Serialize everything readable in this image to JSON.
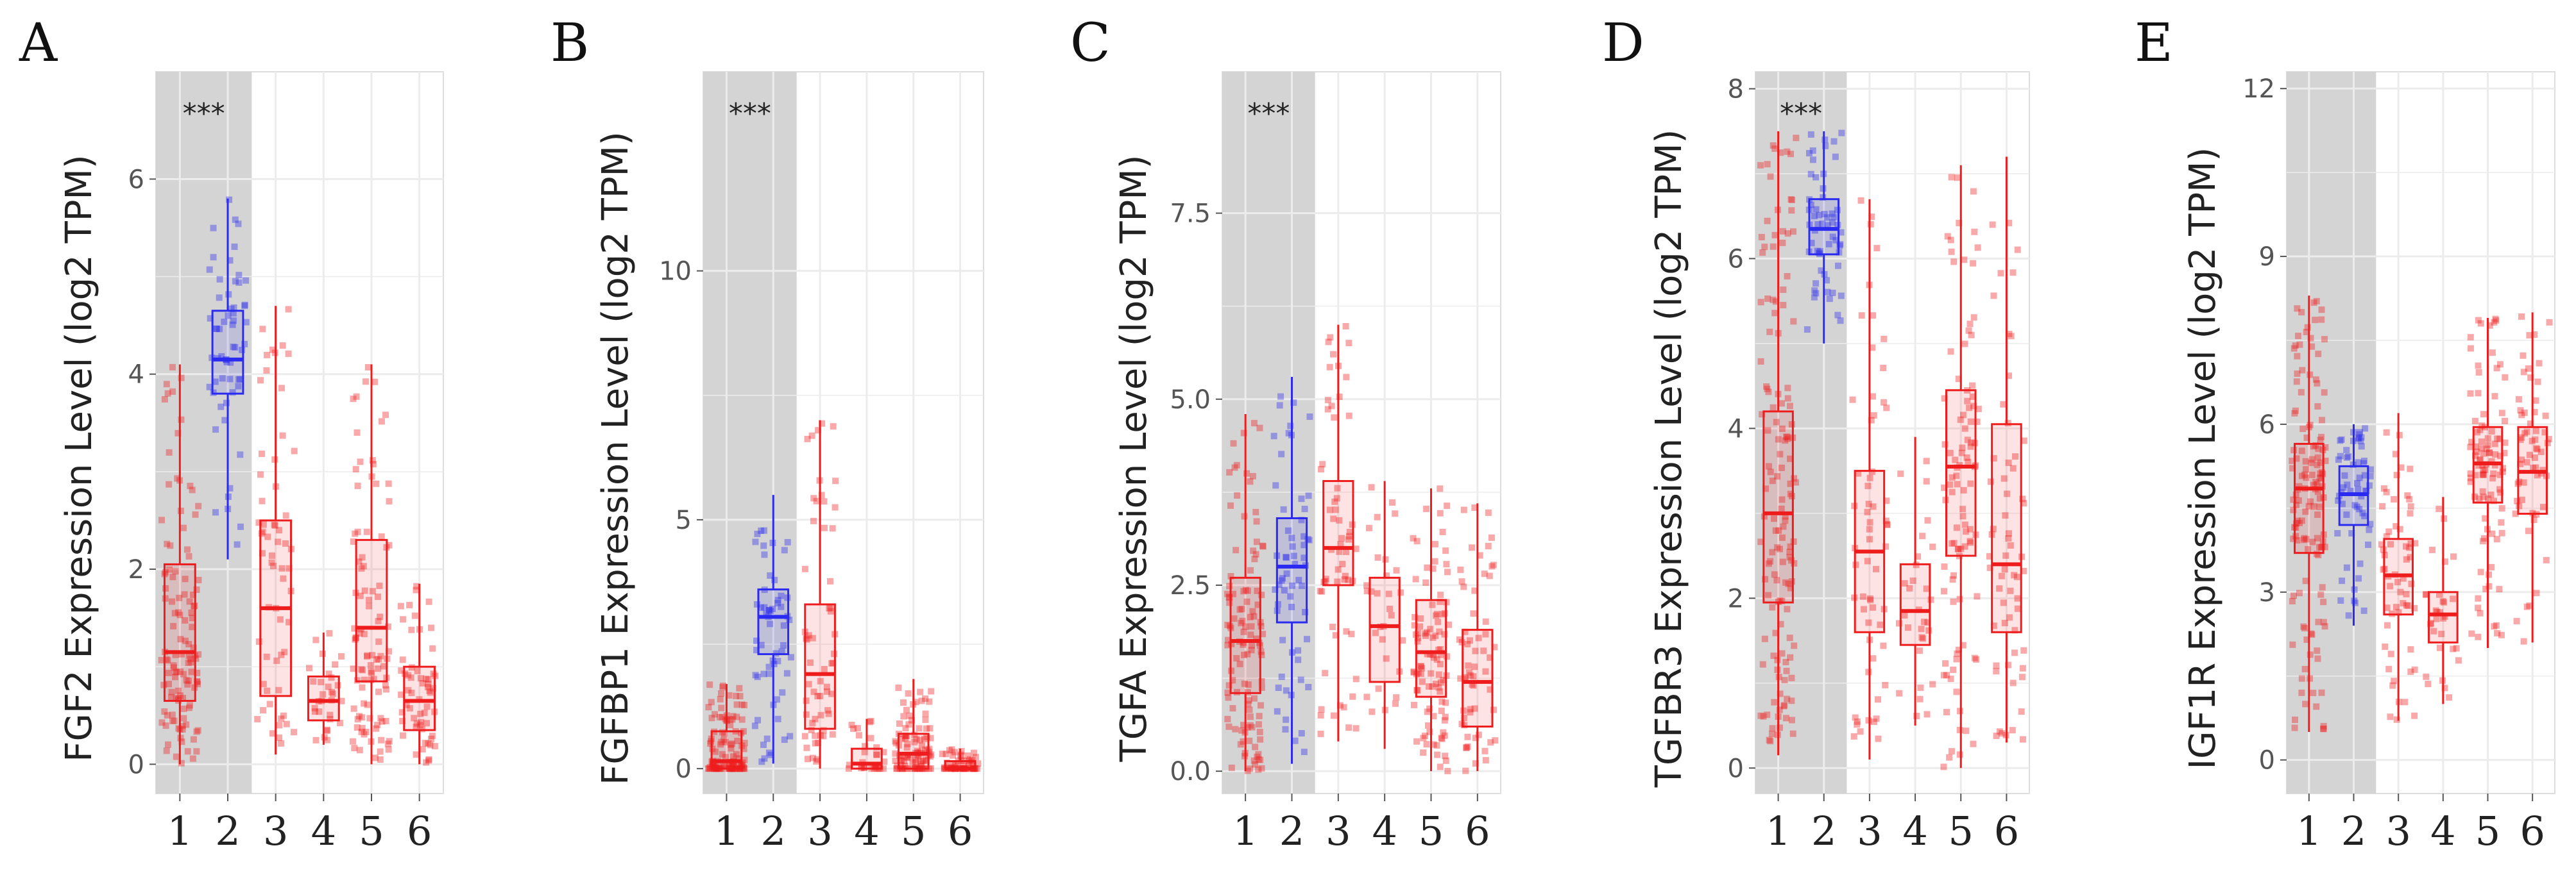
{
  "figure": {
    "colors": {
      "tumor": "#ee1c1c",
      "normal": "#2a2af0",
      "highlight_band": "#d4d4d4",
      "grid": "#ececec",
      "panel_border": "#dddddd"
    }
  },
  "chart_data": [
    {
      "panel": "A",
      "type": "box",
      "ylabel": "FGF2 Expression Level (log2 TPM)",
      "ylim": [
        -0.3,
        7.1
      ],
      "yticks": [
        0,
        2,
        4,
        6
      ],
      "yticklabels": [
        "0",
        "2",
        "4",
        "6"
      ],
      "categories": [
        "1",
        "2",
        "3",
        "4",
        "5",
        "6"
      ],
      "highlight": "1-2",
      "significance": "***",
      "boxes": [
        {
          "category": "1",
          "group": "tumor",
          "min": 0.0,
          "q1": 0.65,
          "median": 1.15,
          "q3": 2.05,
          "max": 4.1,
          "n_points": 120
        },
        {
          "category": "2",
          "group": "normal",
          "min": 2.1,
          "q1": 3.8,
          "median": 4.15,
          "q3": 4.65,
          "max": 5.8,
          "n_points": 60
        },
        {
          "category": "3",
          "group": "tumor",
          "min": 0.1,
          "q1": 0.7,
          "median": 1.6,
          "q3": 2.5,
          "max": 4.7,
          "n_points": 60
        },
        {
          "category": "4",
          "group": "tumor",
          "min": 0.2,
          "q1": 0.45,
          "median": 0.65,
          "q3": 0.9,
          "max": 1.35,
          "n_points": 30
        },
        {
          "category": "5",
          "group": "tumor",
          "min": 0.0,
          "q1": 0.85,
          "median": 1.4,
          "q3": 2.3,
          "max": 4.1,
          "n_points": 100
        },
        {
          "category": "6",
          "group": "tumor",
          "min": 0.0,
          "q1": 0.35,
          "median": 0.65,
          "q3": 1.0,
          "max": 1.85,
          "n_points": 60
        }
      ]
    },
    {
      "panel": "B",
      "type": "box",
      "ylabel": "FGFBP1 Expression Level (log2 TPM)",
      "ylim": [
        -0.5,
        14.0
      ],
      "yticks": [
        0,
        5,
        10
      ],
      "yticklabels": [
        "0",
        "5",
        "10"
      ],
      "categories": [
        "1",
        "2",
        "3",
        "4",
        "5",
        "6"
      ],
      "highlight": "1-2",
      "significance": "***",
      "boxes": [
        {
          "category": "1",
          "group": "tumor",
          "min": 0.0,
          "q1": 0.0,
          "median": 0.15,
          "q3": 0.75,
          "max": 1.7,
          "n_points": 120
        },
        {
          "category": "2",
          "group": "normal",
          "min": 0.1,
          "q1": 2.3,
          "median": 3.05,
          "q3": 3.6,
          "max": 5.5,
          "n_points": 60
        },
        {
          "category": "3",
          "group": "tumor",
          "min": 0.0,
          "q1": 0.8,
          "median": 1.9,
          "q3": 3.3,
          "max": 7.0,
          "n_points": 60
        },
        {
          "category": "4",
          "group": "tumor",
          "min": 0.0,
          "q1": 0.0,
          "median": 0.1,
          "q3": 0.4,
          "max": 1.0,
          "n_points": 30
        },
        {
          "category": "5",
          "group": "tumor",
          "min": 0.0,
          "q1": 0.0,
          "median": 0.3,
          "q3": 0.7,
          "max": 1.8,
          "n_points": 100
        },
        {
          "category": "6",
          "group": "tumor",
          "min": 0.0,
          "q1": 0.0,
          "median": 0.0,
          "q3": 0.15,
          "max": 0.4,
          "n_points": 60
        }
      ]
    },
    {
      "panel": "C",
      "type": "box",
      "ylabel": "TGFA Expression Level (log2 TPM)",
      "ylim": [
        -0.3,
        9.4
      ],
      "yticks": [
        0,
        2.5,
        5,
        7.5
      ],
      "yticklabels": [
        "0.0",
        "2.5",
        "5.0",
        "7.5"
      ],
      "categories": [
        "1",
        "2",
        "3",
        "4",
        "5",
        "6"
      ],
      "highlight": "1-2",
      "significance": "***",
      "boxes": [
        {
          "category": "1",
          "group": "tumor",
          "min": 0.0,
          "q1": 1.05,
          "median": 1.75,
          "q3": 2.6,
          "max": 4.8,
          "n_points": 120
        },
        {
          "category": "2",
          "group": "normal",
          "min": 0.1,
          "q1": 2.0,
          "median": 2.75,
          "q3": 3.4,
          "max": 5.3,
          "n_points": 60
        },
        {
          "category": "3",
          "group": "tumor",
          "min": 0.4,
          "q1": 2.5,
          "median": 3.0,
          "q3": 3.9,
          "max": 6.0,
          "n_points": 60
        },
        {
          "category": "4",
          "group": "tumor",
          "min": 0.3,
          "q1": 1.2,
          "median": 1.95,
          "q3": 2.6,
          "max": 3.9,
          "n_points": 30
        },
        {
          "category": "5",
          "group": "tumor",
          "min": 0.0,
          "q1": 1.0,
          "median": 1.6,
          "q3": 2.3,
          "max": 3.8,
          "n_points": 100
        },
        {
          "category": "6",
          "group": "tumor",
          "min": 0.0,
          "q1": 0.6,
          "median": 1.2,
          "q3": 1.9,
          "max": 3.6,
          "n_points": 60
        }
      ]
    },
    {
      "panel": "D",
      "type": "box",
      "ylabel": "TGFBR3 Expression Level (log2 TPM)",
      "ylim": [
        -0.3,
        8.2
      ],
      "yticks": [
        0,
        2,
        4,
        6,
        8
      ],
      "yticklabels": [
        "0",
        "2",
        "4",
        "6",
        "8"
      ],
      "categories": [
        "1",
        "2",
        "3",
        "4",
        "5",
        "6"
      ],
      "highlight": "1-2",
      "significance": "***",
      "boxes": [
        {
          "category": "1",
          "group": "tumor",
          "min": 0.15,
          "q1": 1.95,
          "median": 3.0,
          "q3": 4.2,
          "max": 7.5,
          "n_points": 140
        },
        {
          "category": "2",
          "group": "normal",
          "min": 5.0,
          "q1": 6.05,
          "median": 6.35,
          "q3": 6.7,
          "max": 7.5,
          "n_points": 60
        },
        {
          "category": "3",
          "group": "tumor",
          "min": 0.1,
          "q1": 1.6,
          "median": 2.55,
          "q3": 3.5,
          "max": 6.7,
          "n_points": 60
        },
        {
          "category": "4",
          "group": "tumor",
          "min": 0.5,
          "q1": 1.45,
          "median": 1.85,
          "q3": 2.4,
          "max": 3.9,
          "n_points": 30
        },
        {
          "category": "5",
          "group": "tumor",
          "min": 0.0,
          "q1": 2.5,
          "median": 3.55,
          "q3": 4.45,
          "max": 7.1,
          "n_points": 100
        },
        {
          "category": "6",
          "group": "tumor",
          "min": 0.3,
          "q1": 1.6,
          "median": 2.4,
          "q3": 4.05,
          "max": 7.2,
          "n_points": 60
        }
      ]
    },
    {
      "panel": "E",
      "type": "box",
      "ylabel": "IGF1R Expression Level (log2 TPM)",
      "ylim": [
        -0.6,
        12.3
      ],
      "yticks": [
        0,
        3,
        6,
        9,
        12
      ],
      "yticklabels": [
        "0",
        "3",
        "6",
        "9",
        "12"
      ],
      "categories": [
        "1",
        "2",
        "3",
        "4",
        "5",
        "6"
      ],
      "highlight": "1-2",
      "significance": "",
      "boxes": [
        {
          "category": "1",
          "group": "tumor",
          "min": 0.5,
          "q1": 3.7,
          "median": 4.85,
          "q3": 5.65,
          "max": 8.3,
          "n_points": 140
        },
        {
          "category": "2",
          "group": "normal",
          "min": 2.4,
          "q1": 4.2,
          "median": 4.75,
          "q3": 5.25,
          "max": 6.0,
          "n_points": 60
        },
        {
          "category": "3",
          "group": "tumor",
          "min": 0.7,
          "q1": 2.6,
          "median": 3.3,
          "q3": 3.95,
          "max": 6.2,
          "n_points": 60
        },
        {
          "category": "4",
          "group": "tumor",
          "min": 1.0,
          "q1": 2.1,
          "median": 2.6,
          "q3": 3.0,
          "max": 4.7,
          "n_points": 30
        },
        {
          "category": "5",
          "group": "tumor",
          "min": 2.0,
          "q1": 4.6,
          "median": 5.3,
          "q3": 5.95,
          "max": 7.9,
          "n_points": 100
        },
        {
          "category": "6",
          "group": "tumor",
          "min": 2.1,
          "q1": 4.4,
          "median": 5.15,
          "q3": 5.95,
          "max": 8.0,
          "n_points": 60
        }
      ]
    }
  ]
}
